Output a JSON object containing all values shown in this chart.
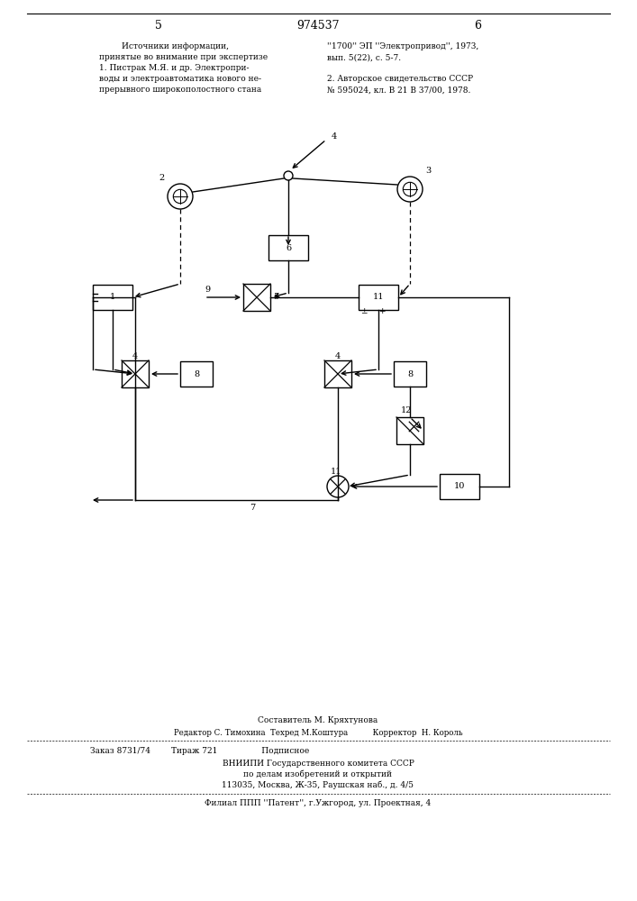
{
  "bg_color": "#ffffff",
  "page_width": 7.07,
  "page_height": 10.0,
  "header": {
    "left_num": "5",
    "center_num": "974537",
    "right_num": "6"
  },
  "top_text_left": [
    "Источники информации,",
    "принятые во внимание при экспертизе",
    "1. Пистрак М.Я. и др. Электропри-",
    "воды и электроавтоматика нового не-",
    "прерывного широкополостного стана"
  ],
  "top_text_right": [
    "''1700'' ЭП ''Электропривод'', 1973,",
    "вып. 5(22), с. 5-7.",
    "",
    "2. Авторское свидетельство СССР",
    "№ 595024, кл. В 21 В 37/00, 1978."
  ],
  "footer_line1": "Составитель М. Кряхтунова",
  "footer_line2": "Редактор С. Тимохина  Техред М.Коштура          Корректор  Н. Король",
  "footer_line3": "Заказ 8731/74        Тираж 721                 Подписное",
  "footer_line4": "ВНИИПИ Государственного комитета СССР",
  "footer_line5": "по делам изобретений и открытий",
  "footer_line6": "113035, Москва, Ж-35, Раушская наб., д. 4/5",
  "footer_line7": "Филиал ППП ''Патент'', г.Ужгород, ул. Проектная, 4"
}
